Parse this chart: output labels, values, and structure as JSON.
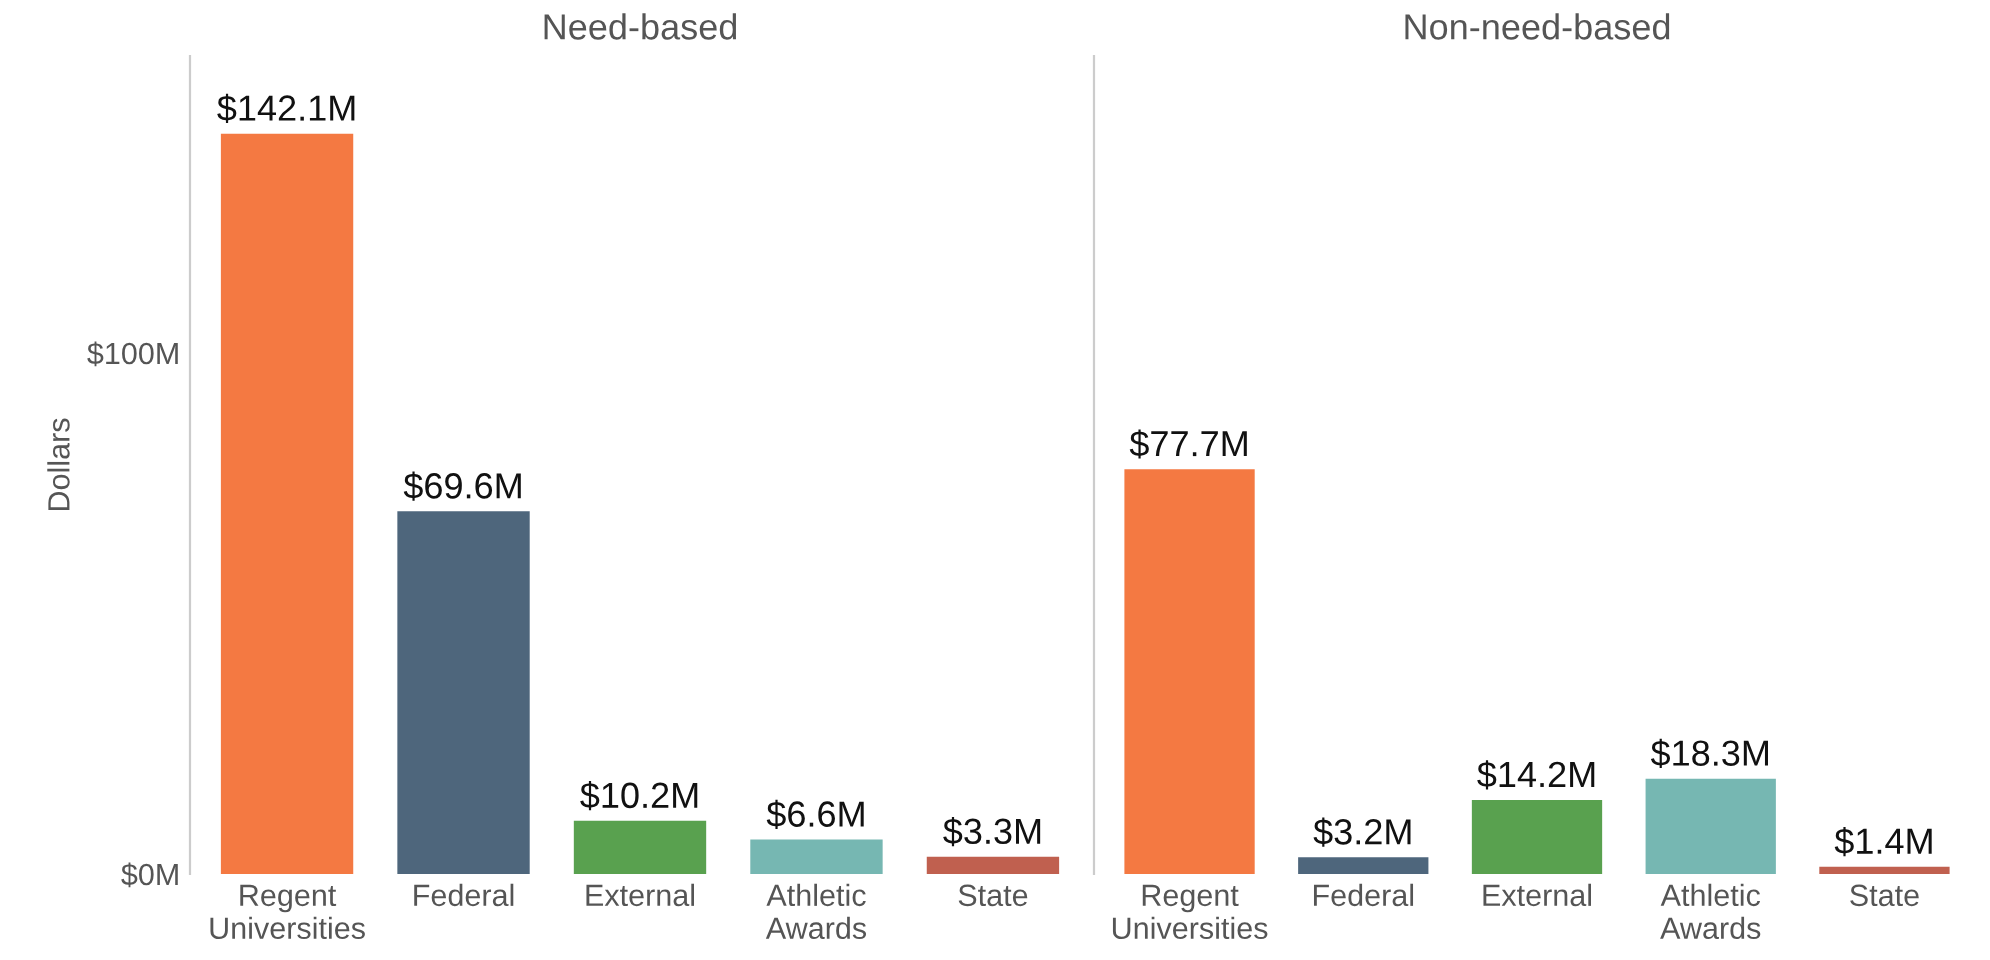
{
  "chart_data": [
    {
      "type": "bar",
      "title": "Need-based",
      "ylabel": "Dollars",
      "categories": [
        "Regent\nUniversities",
        "Federal",
        "External",
        "Athletic\nAwards",
        "State"
      ],
      "values": [
        142.1,
        69.6,
        10.2,
        6.6,
        3.3
      ],
      "colors": [
        "#f47942",
        "#4e667c",
        "#59a14f",
        "#76b7b2",
        "#c0604f"
      ],
      "value_labels": [
        "$142.1M",
        "$69.6M",
        "$10.2M",
        "$6.6M",
        "$3.3M"
      ],
      "ylim": [
        0,
        157
      ],
      "yticks": [
        {
          "value": 0,
          "label": "$0M"
        },
        {
          "value": 100,
          "label": "$100M"
        }
      ],
      "grid": false,
      "legend": false
    },
    {
      "type": "bar",
      "title": "Non-need-based",
      "categories": [
        "Regent\nUniversities",
        "Federal",
        "External",
        "Athletic\nAwards",
        "State"
      ],
      "values": [
        77.7,
        3.2,
        14.2,
        18.3,
        1.4
      ],
      "colors": [
        "#f47942",
        "#4e667c",
        "#59a14f",
        "#76b7b2",
        "#c0604f"
      ],
      "value_labels": [
        "$77.7M",
        "$3.2M",
        "$14.2M",
        "$18.3M",
        "$1.4M"
      ],
      "ylim": [
        0,
        157
      ],
      "tick_labels": "x",
      "grid": false,
      "legend": false
    }
  ]
}
